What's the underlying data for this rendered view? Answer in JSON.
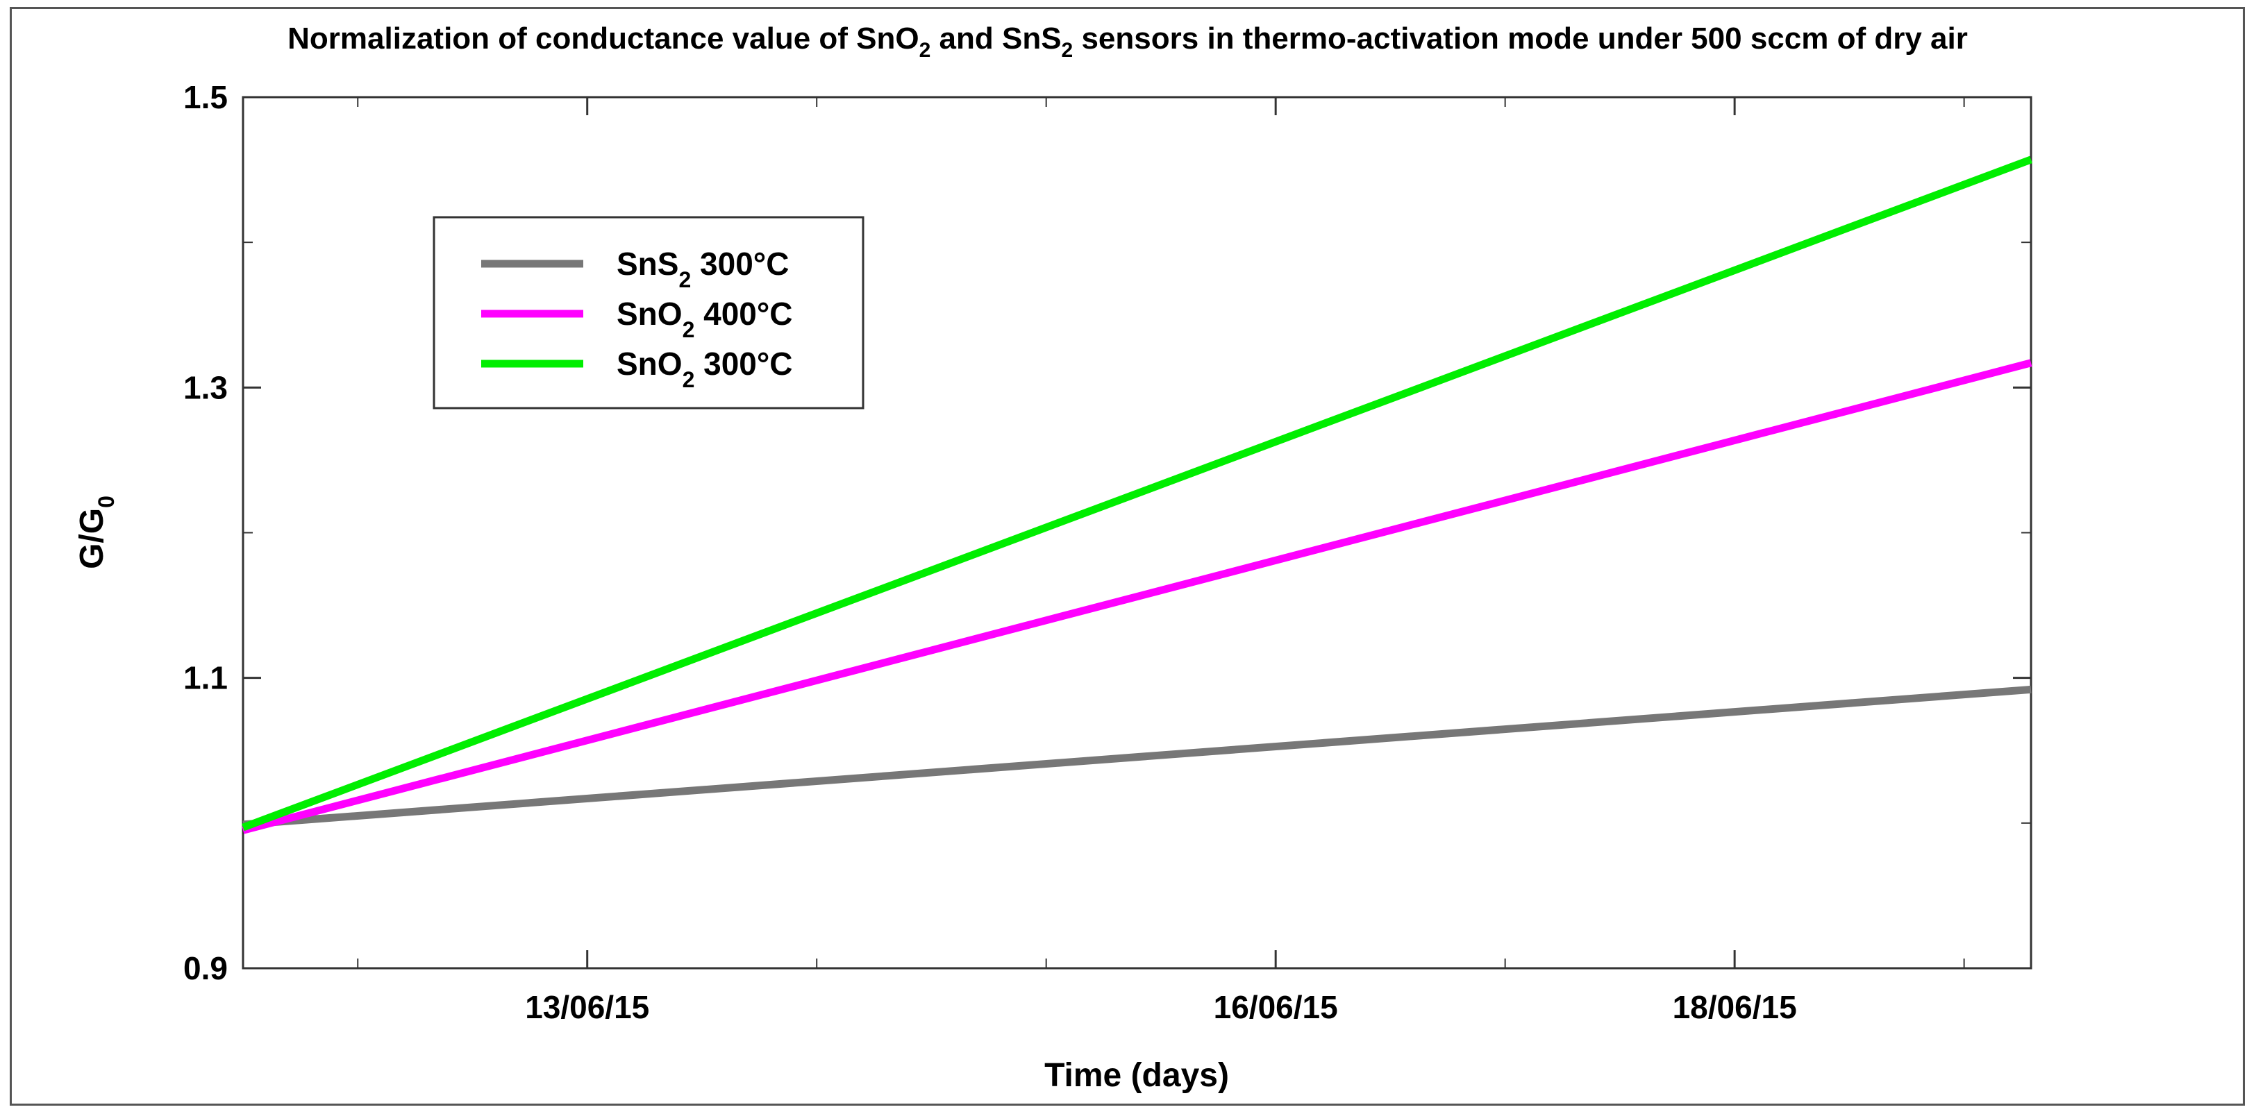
{
  "chart_data": {
    "type": "line",
    "title": {
      "parts": [
        {
          "t": "Normalization of conductance value of SnO"
        },
        {
          "t": "2",
          "sub": true
        },
        {
          "t": " and SnS"
        },
        {
          "t": "2",
          "sub": true
        },
        {
          "t": " sensors in thermo-activation mode under 500 sccm of dry air"
        }
      ]
    },
    "xlabel": "Time (days)",
    "ylabel": {
      "main": "G/G",
      "sub": "0"
    },
    "xlim": [
      "11/06/15 12:00",
      "19/06/15 07:00"
    ],
    "ylim": [
      0.9,
      1.5
    ],
    "x_ticks": [
      {
        "x": "13/06/15 00:00",
        "label": "13/06/15"
      },
      {
        "x": "16/06/15 00:00",
        "label": "16/06/15"
      },
      {
        "x": "18/06/15 00:00",
        "label": "18/06/15"
      }
    ],
    "y_ticks": [
      {
        "y": 0.9,
        "label": "0.9"
      },
      {
        "y": 1.1,
        "label": "1.1"
      },
      {
        "y": 1.3,
        "label": "1.3"
      },
      {
        "y": 1.5,
        "label": "1.5"
      }
    ],
    "grid": false,
    "legend_position": "top-left",
    "series": [
      {
        "name": {
          "pre": "SnS",
          "sub": "2",
          "post": " 300°C"
        },
        "color": "#777777",
        "x": [
          "11/06/15 12:00",
          "19/06/15 07:00"
        ],
        "y": [
          0.999,
          1.092
        ]
      },
      {
        "name": {
          "pre": "SnO",
          "sub": "2",
          "post": " 400°C"
        },
        "color": "#ff00ff",
        "x": [
          "11/06/15 12:00",
          "19/06/15 07:00"
        ],
        "y": [
          0.995,
          1.317
        ]
      },
      {
        "name": {
          "pre": "SnO",
          "sub": "2",
          "post": " 300°C"
        },
        "color": "#00ee00",
        "x": [
          "11/06/15 12:00",
          "19/06/15 07:00"
        ],
        "y": [
          0.997,
          1.457
        ]
      }
    ]
  }
}
